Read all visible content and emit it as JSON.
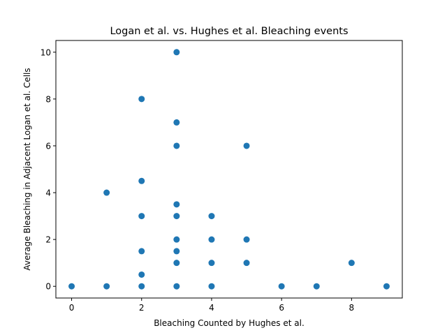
{
  "chart_data": {
    "type": "scatter",
    "title": "Logan et al. vs. Hughes et al. Bleaching events",
    "xlabel": "Bleaching Counted by Hughes et al.",
    "ylabel": "Average Bleaching in Adjacent Logan et al. Cells",
    "xlim": [
      -0.45,
      9.45
    ],
    "ylim": [
      -0.5,
      10.5
    ],
    "xticks": [
      0,
      2,
      4,
      6,
      8
    ],
    "yticks": [
      0,
      2,
      4,
      6,
      8,
      10
    ],
    "grid": false,
    "marker_color": "#1f77b4",
    "points": [
      {
        "x": 0,
        "y": 0
      },
      {
        "x": 1,
        "y": 0
      },
      {
        "x": 1,
        "y": 4
      },
      {
        "x": 2,
        "y": 0
      },
      {
        "x": 2,
        "y": 0.5
      },
      {
        "x": 2,
        "y": 1.5
      },
      {
        "x": 2,
        "y": 3
      },
      {
        "x": 2,
        "y": 4.5
      },
      {
        "x": 2,
        "y": 8
      },
      {
        "x": 3,
        "y": 0
      },
      {
        "x": 3,
        "y": 1
      },
      {
        "x": 3,
        "y": 1.5
      },
      {
        "x": 3,
        "y": 2
      },
      {
        "x": 3,
        "y": 3
      },
      {
        "x": 3,
        "y": 3.5
      },
      {
        "x": 3,
        "y": 6
      },
      {
        "x": 3,
        "y": 7
      },
      {
        "x": 3,
        "y": 10
      },
      {
        "x": 4,
        "y": 0
      },
      {
        "x": 4,
        "y": 1
      },
      {
        "x": 4,
        "y": 2
      },
      {
        "x": 4,
        "y": 3
      },
      {
        "x": 5,
        "y": 1
      },
      {
        "x": 5,
        "y": 2
      },
      {
        "x": 5,
        "y": 6
      },
      {
        "x": 6,
        "y": 0
      },
      {
        "x": 7,
        "y": 0
      },
      {
        "x": 8,
        "y": 1
      },
      {
        "x": 9,
        "y": 0
      }
    ]
  }
}
